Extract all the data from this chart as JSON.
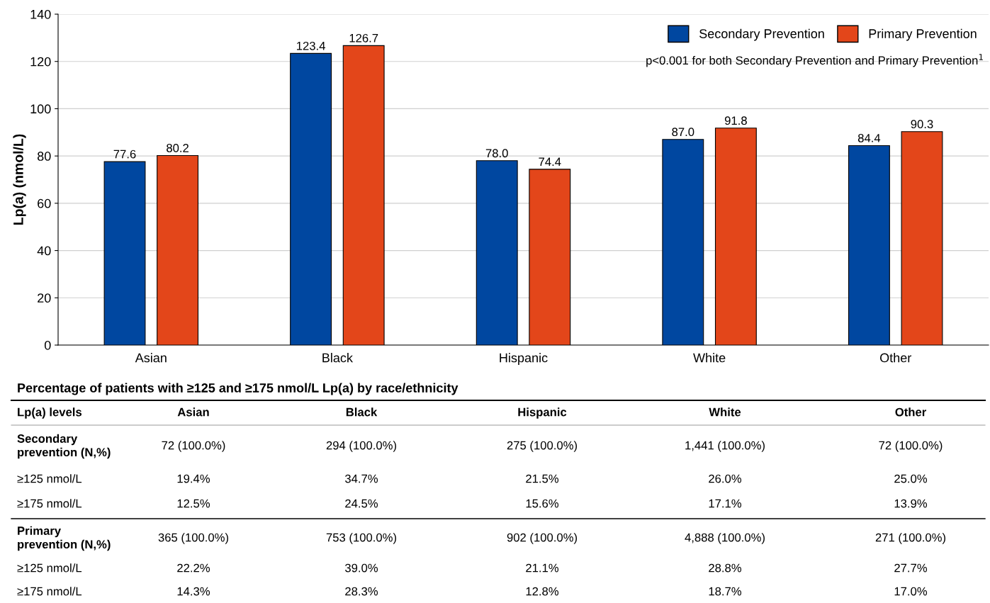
{
  "chart_data": [
    {
      "type": "bar",
      "ylabel": "Lp(a) (nmol/L)",
      "categories": [
        "Asian",
        "Black",
        "Hispanic",
        "White",
        "Other"
      ],
      "series": [
        {
          "name": "Secondary Prevention",
          "color": "#0047a0",
          "values": [
            77.6,
            123.4,
            78.0,
            87.0,
            84.4
          ],
          "value_labels": [
            "77.6",
            "123.4",
            "78.0",
            "87.0",
            "84.4"
          ]
        },
        {
          "name": "Primary Prevention",
          "color": "#e3461a",
          "values": [
            80.2,
            126.7,
            74.4,
            91.8,
            90.3
          ],
          "value_labels": [
            "80.2",
            "126.7",
            "74.4",
            "91.8",
            "90.3"
          ]
        }
      ],
      "ylim": [
        0,
        140
      ],
      "yticks": [
        0,
        20,
        40,
        60,
        80,
        100,
        120,
        140
      ],
      "grid": "y",
      "legend": "top right",
      "annotations": [
        "p<0.001 for both Secondary Prevention and Primary Prevention$^{1}$"
      ]
    },
    {
      "type": "other",
      "title": "Percentage of patients with ≥125 and ≥175 nmol/L Lp(a) by race/ethnicity",
      "categories": [
        "Lp(a) levels",
        "Asian",
        "Black",
        "Hispanic",
        "White",
        "Other"
      ],
      "y_categories": [
        "Secondary\nprevention (N,%)",
        "≥125 nmol/L",
        "≥175 nmol/L",
        "Primary\nprevention (N,%)",
        "≥125 nmol/L",
        "≥175 nmol/L"
      ],
      "cell_labels": [
        [
          "72 (100.0%)",
          "294 (100.0%)",
          "275 (100.0%)",
          "1,441 (100.0%)",
          "72 (100.0%)"
        ],
        [
          "19.4%",
          "34.7%",
          "21.5%",
          "26.0%",
          "25.0%"
        ],
        [
          "12.5%",
          "24.5%",
          "15.6%",
          "17.1%",
          "13.9%"
        ],
        [
          "365 (100.0%)",
          "753 (100.0%)",
          "902 (100.0%)",
          "4,888 (100.0%)",
          "271 (100.0%)"
        ],
        [
          "22.2%",
          "39.0%",
          "21.1%",
          "28.8%",
          "27.7%"
        ],
        [
          "14.3%",
          "28.3%",
          "12.8%",
          "18.7%",
          "17.0%"
        ]
      ]
    }
  ]
}
